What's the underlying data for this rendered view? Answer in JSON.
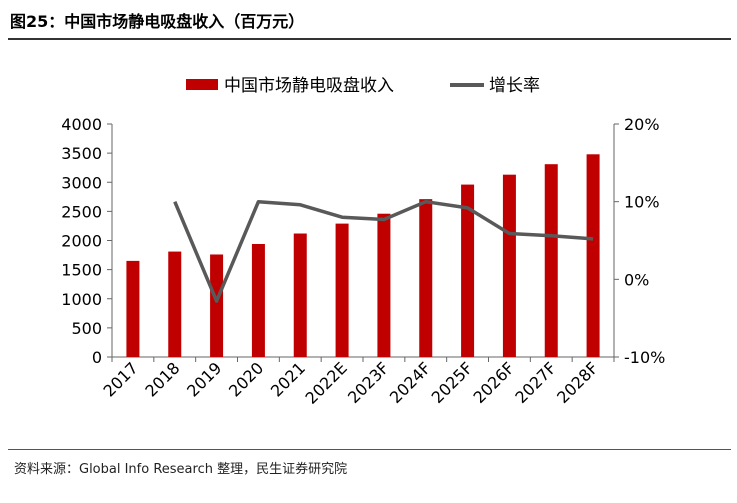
{
  "title": "图25：中国市场静电吸盘收入（百万元）",
  "source": "资料来源：Global Info Research 整理，民生证券研究院",
  "colors": {
    "bar": "#C00000",
    "line": "#595959",
    "axis": "#666666"
  },
  "chart_data": {
    "type": "bar",
    "categories": [
      "2017",
      "2018",
      "2019",
      "2020",
      "2021",
      "2022E",
      "2023F",
      "2024F",
      "2025F",
      "2026F",
      "2027F",
      "2028F"
    ],
    "series": [
      {
        "name": "中国市场静电吸盘收入",
        "type": "bar",
        "axis": "left",
        "values": [
          1650,
          1810,
          1760,
          1940,
          2120,
          2290,
          2460,
          2710,
          2960,
          3130,
          3310,
          3480
        ]
      },
      {
        "name": "增长率",
        "type": "line",
        "axis": "right",
        "values": [
          null,
          10.0,
          -2.8,
          10.0,
          9.6,
          8.0,
          7.7,
          10.0,
          9.2,
          5.9,
          5.6,
          5.2
        ]
      }
    ],
    "ylim_left": [
      0,
      4000
    ],
    "yticks_left": [
      "0",
      "500",
      "1000",
      "1500",
      "2000",
      "2500",
      "3000",
      "3500",
      "4000"
    ],
    "ylim_right": [
      -10,
      20
    ],
    "yticks_right": [
      "-10%",
      "0%",
      "10%",
      "20%"
    ],
    "legend": "top-center"
  }
}
